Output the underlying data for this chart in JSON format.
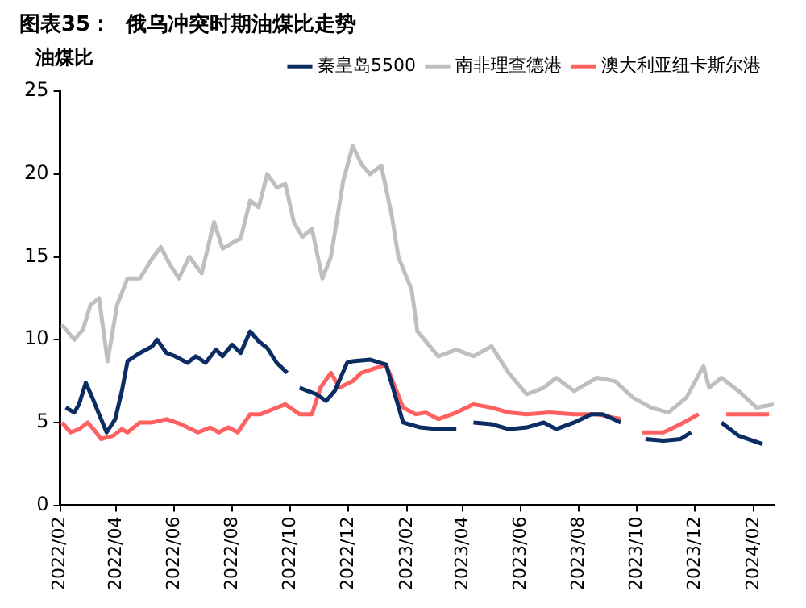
{
  "chart_data": {
    "type": "line",
    "title": "图表35：  俄乌冲突时期油煤比走势",
    "ylabel": "油煤比",
    "xlim": [
      "2022-02-01",
      "2024-02-22"
    ],
    "xticks": [
      {
        "value": "2022-02",
        "label": "2022/02"
      },
      {
        "value": "2022-04",
        "label": "2022/04"
      },
      {
        "value": "2022-06",
        "label": "2022/06"
      },
      {
        "value": "2022-08",
        "label": "2022/08"
      },
      {
        "value": "2022-10",
        "label": "2022/10"
      },
      {
        "value": "2022-12",
        "label": "2022/12"
      },
      {
        "value": "2023-02",
        "label": "2023/02"
      },
      {
        "value": "2023-04",
        "label": "2023/04"
      },
      {
        "value": "2023-06",
        "label": "2023/06"
      },
      {
        "value": "2023-08",
        "label": "2023/08"
      },
      {
        "value": "2023-10",
        "label": "2023/10"
      },
      {
        "value": "2023-12",
        "label": "2023/12"
      },
      {
        "value": "2024-02",
        "label": "2024/02"
      }
    ],
    "ylim": [
      0,
      25
    ],
    "yticks": [
      0,
      5,
      10,
      15,
      20,
      25
    ],
    "grid": false,
    "legend": "top right",
    "marker": "none",
    "line_style": "solid",
    "series": [
      {
        "name": "秦皇岛5500",
        "color": "#0c2c64",
        "x": [
          "2022-02-07",
          "2022-02-16",
          "2022-02-21",
          "2022-02-28",
          "2022-03-07",
          "2022-03-14",
          "2022-03-22",
          "2022-03-31",
          "2022-04-07",
          "2022-04-13",
          "2022-04-26",
          "2022-05-09",
          "2022-05-14",
          "2022-05-24",
          "2022-06-02",
          "2022-06-15",
          "2022-06-24",
          "2022-07-04",
          "2022-07-15",
          "2022-07-22",
          "2022-08-01",
          "2022-08-10",
          "2022-08-20",
          "2022-08-29",
          "2022-09-07",
          "2022-09-17",
          "2022-09-28",
          "2022-10-05",
          "2022-10-11",
          "2022-10-29",
          "2022-11-08",
          "2022-11-17",
          "2022-11-30",
          "2022-12-06",
          "2022-12-24",
          "2023-01-10",
          "2023-01-28",
          "2023-02-15",
          "2023-03-06",
          "2023-03-25",
          "2023-04-05",
          "2023-04-12",
          "2023-05-01",
          "2023-05-19",
          "2023-06-07",
          "2023-06-25",
          "2023-07-08",
          "2023-07-27",
          "2023-08-14",
          "2023-08-26",
          "2023-09-14",
          "2023-09-28",
          "2023-10-10",
          "2023-10-29",
          "2023-11-16",
          "2023-11-27",
          "2023-12-15",
          "2023-12-29",
          "2024-01-16",
          "2024-02-10"
        ],
        "values": [
          5.9,
          5.6,
          6.1,
          7.4,
          6.5,
          5.5,
          4.4,
          5.2,
          6.9,
          8.7,
          9.2,
          9.6,
          10.0,
          9.2,
          9.0,
          8.6,
          9.0,
          8.6,
          9.4,
          9.0,
          9.7,
          9.2,
          10.5,
          9.9,
          9.5,
          8.6,
          8.0,
          null,
          7.1,
          6.7,
          6.3,
          6.9,
          8.6,
          8.7,
          8.8,
          8.5,
          5.0,
          4.7,
          4.6,
          4.6,
          null,
          5.0,
          4.9,
          4.6,
          4.7,
          5.0,
          4.6,
          5.0,
          5.5,
          5.5,
          5.0,
          null,
          4.0,
          3.9,
          4.0,
          4.4,
          null,
          5.0,
          4.2,
          3.7
        ]
      },
      {
        "name": "南非理查德港",
        "color": "#bfbfbf",
        "x": [
          "2022-02-03",
          "2022-02-16",
          "2022-02-25",
          "2022-03-05",
          "2022-03-14",
          "2022-03-23",
          "2022-04-02",
          "2022-04-13",
          "2022-04-26",
          "2022-05-09",
          "2022-05-18",
          "2022-05-27",
          "2022-06-06",
          "2022-06-17",
          "2022-06-30",
          "2022-07-13",
          "2022-07-22",
          "2022-08-03",
          "2022-08-10",
          "2022-08-20",
          "2022-08-29",
          "2022-09-07",
          "2022-09-17",
          "2022-09-26",
          "2022-10-05",
          "2022-10-14",
          "2022-10-24",
          "2022-11-04",
          "2022-11-13",
          "2022-11-26",
          "2022-12-06",
          "2022-12-15",
          "2022-12-24",
          "2023-01-05",
          "2023-01-16",
          "2023-01-23",
          "2023-02-06",
          "2023-02-12",
          "2023-03-06",
          "2023-03-25",
          "2023-04-12",
          "2023-05-01",
          "2023-05-19",
          "2023-06-07",
          "2023-06-25",
          "2023-07-08",
          "2023-07-27",
          "2023-08-20",
          "2023-09-08",
          "2023-09-27",
          "2023-10-16",
          "2023-11-03",
          "2023-11-22",
          "2023-12-10",
          "2023-12-16",
          "2023-12-29",
          "2024-01-16",
          "2024-02-04",
          "2024-02-22"
        ],
        "values": [
          10.9,
          10.0,
          10.6,
          12.1,
          12.5,
          8.7,
          12.1,
          13.7,
          13.7,
          14.9,
          15.6,
          14.6,
          13.7,
          15.0,
          14.0,
          17.1,
          15.5,
          15.9,
          16.1,
          18.4,
          18.0,
          20.0,
          19.2,
          19.4,
          17.1,
          16.2,
          16.7,
          13.7,
          15.0,
          19.6,
          21.7,
          20.6,
          20.0,
          20.5,
          17.5,
          15.0,
          13.0,
          10.5,
          9.0,
          9.4,
          9.0,
          9.6,
          8.0,
          6.7,
          7.1,
          7.7,
          6.9,
          7.7,
          7.5,
          6.5,
          5.9,
          5.6,
          6.5,
          8.4,
          7.1,
          7.7,
          6.9,
          5.9,
          6.1
        ]
      },
      {
        "name": "澳大利亚纽卡斯尔港",
        "color": "#ff6161",
        "x": [
          "2022-02-03",
          "2022-02-12",
          "2022-02-21",
          "2022-03-02",
          "2022-03-11",
          "2022-03-16",
          "2022-03-29",
          "2022-04-07",
          "2022-04-13",
          "2022-04-26",
          "2022-05-09",
          "2022-05-24",
          "2022-06-08",
          "2022-06-26",
          "2022-07-09",
          "2022-07-18",
          "2022-07-28",
          "2022-08-07",
          "2022-08-20",
          "2022-08-31",
          "2022-09-17",
          "2022-09-26",
          "2022-10-11",
          "2022-10-24",
          "2022-11-02",
          "2022-11-13",
          "2022-11-22",
          "2022-12-06",
          "2022-12-15",
          "2023-01-10",
          "2023-01-28",
          "2023-02-10",
          "2023-02-21",
          "2023-03-06",
          "2023-03-25",
          "2023-04-12",
          "2023-05-01",
          "2023-05-19",
          "2023-06-07",
          "2023-07-01",
          "2023-07-27",
          "2023-08-20",
          "2023-09-14",
          "2023-09-27",
          "2023-10-06",
          "2023-10-29",
          "2023-11-16",
          "2023-12-05",
          "2023-12-20",
          "2024-01-03",
          "2024-01-22",
          "2024-02-17"
        ],
        "values": [
          5.0,
          4.4,
          4.6,
          5.0,
          4.4,
          4.0,
          4.2,
          4.6,
          4.4,
          5.0,
          5.0,
          5.2,
          4.9,
          4.4,
          4.7,
          4.4,
          4.7,
          4.4,
          5.5,
          5.5,
          5.9,
          6.1,
          5.5,
          5.5,
          7.1,
          8.0,
          7.1,
          7.5,
          8.0,
          8.5,
          5.9,
          5.5,
          5.6,
          5.2,
          5.6,
          6.1,
          5.9,
          5.6,
          5.5,
          5.6,
          5.5,
          5.5,
          5.2,
          null,
          4.4,
          4.4,
          4.9,
          5.5,
          null,
          5.5,
          5.5,
          5.5
        ]
      }
    ]
  }
}
